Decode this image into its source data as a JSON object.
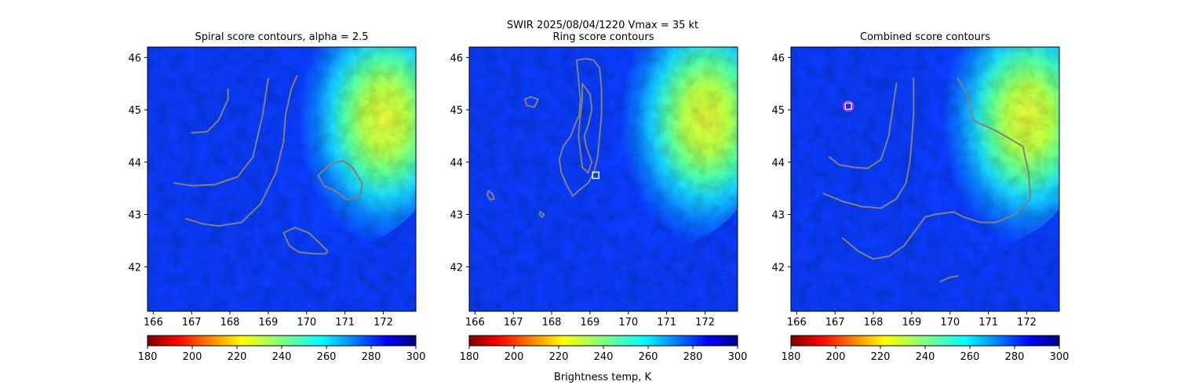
{
  "figure": {
    "suptitle_line1": "SWIR  2025/08/04/1220    Vmax = 35 kt",
    "colorbar_label": "Brightness temp, K"
  },
  "style": {
    "contour_color": "#808080",
    "marker_color": "#ffffff",
    "circle_marker_color": "#ff1aff"
  },
  "chart_data": [
    {
      "type": "heatmap",
      "title": "Spiral score contours, alpha =  2.5",
      "xlim": [
        165.85,
        172.85
      ],
      "ylim": [
        41.15,
        46.2
      ],
      "xticks": [
        "166",
        "167",
        "168",
        "169",
        "170",
        "171",
        "172"
      ],
      "yticks": [
        "42",
        "43",
        "44",
        "45",
        "46"
      ],
      "colormap": "jet_r",
      "colorbar": {
        "min": 180,
        "max": 300,
        "ticks": [
          "180",
          "200",
          "220",
          "240",
          "260",
          "280",
          "300"
        ]
      },
      "contours": [
        [
          [
            167.0,
            44.56
          ],
          [
            167.4,
            44.58
          ],
          [
            167.7,
            44.8
          ],
          [
            167.95,
            45.2
          ],
          [
            167.95,
            45.4
          ]
        ],
        [
          [
            166.55,
            43.6
          ],
          [
            167.0,
            43.55
          ],
          [
            167.6,
            43.57
          ],
          [
            168.2,
            43.72
          ],
          [
            168.6,
            44.1
          ],
          [
            168.85,
            44.9
          ],
          [
            169.0,
            45.6
          ]
        ],
        [
          [
            166.85,
            42.92
          ],
          [
            167.3,
            42.82
          ],
          [
            167.7,
            42.78
          ],
          [
            168.3,
            42.85
          ],
          [
            168.8,
            43.2
          ],
          [
            169.2,
            43.8
          ],
          [
            169.4,
            44.4
          ],
          [
            169.45,
            44.9
          ],
          [
            169.6,
            45.4
          ],
          [
            169.75,
            45.65
          ]
        ],
        [
          [
            170.3,
            43.75
          ],
          [
            170.6,
            43.95
          ],
          [
            170.95,
            44.03
          ],
          [
            171.2,
            43.9
          ],
          [
            171.45,
            43.6
          ],
          [
            171.4,
            43.35
          ],
          [
            171.05,
            43.28
          ],
          [
            170.75,
            43.45
          ],
          [
            170.45,
            43.55
          ],
          [
            170.3,
            43.75
          ]
        ],
        [
          [
            169.4,
            42.65
          ],
          [
            169.7,
            42.75
          ],
          [
            170.05,
            42.65
          ],
          [
            170.3,
            42.48
          ],
          [
            170.55,
            42.3
          ],
          [
            170.5,
            42.25
          ],
          [
            170.2,
            42.25
          ],
          [
            169.8,
            42.28
          ],
          [
            169.55,
            42.4
          ],
          [
            169.4,
            42.65
          ]
        ]
      ],
      "markers": []
    },
    {
      "type": "heatmap",
      "title": "Ring score contours",
      "xlim": [
        165.85,
        172.85
      ],
      "ylim": [
        41.15,
        46.2
      ],
      "xticks": [
        "166",
        "167",
        "168",
        "169",
        "170",
        "171",
        "172"
      ],
      "yticks": [
        "42",
        "43",
        "44",
        "45",
        "46"
      ],
      "colormap": "jet_r",
      "colorbar": {
        "min": 180,
        "max": 300,
        "ticks": [
          "180",
          "200",
          "220",
          "240",
          "260",
          "280",
          "300"
        ]
      },
      "contours": [
        [
          [
            168.65,
            45.95
          ],
          [
            168.7,
            45.6
          ],
          [
            168.75,
            45.2
          ],
          [
            168.72,
            44.9
          ],
          [
            168.6,
            44.7
          ],
          [
            168.5,
            44.5
          ],
          [
            168.3,
            44.3
          ],
          [
            168.2,
            44.05
          ],
          [
            168.25,
            43.8
          ],
          [
            168.4,
            43.55
          ],
          [
            168.55,
            43.35
          ],
          [
            168.7,
            43.45
          ],
          [
            168.95,
            43.6
          ],
          [
            169.1,
            43.8
          ],
          [
            169.2,
            44.1
          ],
          [
            169.25,
            44.5
          ],
          [
            169.3,
            44.9
          ],
          [
            169.3,
            45.4
          ],
          [
            169.25,
            45.8
          ],
          [
            169.1,
            45.95
          ],
          [
            168.9,
            45.98
          ],
          [
            168.65,
            45.95
          ]
        ],
        [
          [
            168.8,
            45.5
          ],
          [
            169.0,
            45.3
          ],
          [
            169.05,
            45.0
          ],
          [
            168.95,
            44.7
          ],
          [
            168.85,
            44.5
          ],
          [
            168.9,
            44.3
          ],
          [
            169.05,
            44.0
          ],
          [
            168.95,
            43.8
          ],
          [
            168.8,
            43.9
          ],
          [
            168.75,
            44.2
          ],
          [
            168.7,
            44.5
          ],
          [
            168.75,
            44.9
          ],
          [
            168.8,
            45.2
          ],
          [
            168.8,
            45.5
          ]
        ],
        [
          [
            167.3,
            45.2
          ],
          [
            167.45,
            45.25
          ],
          [
            167.65,
            45.2
          ],
          [
            167.55,
            45.05
          ],
          [
            167.35,
            45.08
          ],
          [
            167.3,
            45.2
          ]
        ],
        [
          [
            166.35,
            43.45
          ],
          [
            166.45,
            43.4
          ],
          [
            166.5,
            43.3
          ],
          [
            166.4,
            43.28
          ],
          [
            166.32,
            43.38
          ],
          [
            166.35,
            43.45
          ]
        ],
        [
          [
            167.7,
            43.05
          ],
          [
            167.8,
            43.0
          ],
          [
            167.75,
            42.95
          ],
          [
            167.68,
            43.0
          ],
          [
            167.7,
            43.05
          ]
        ]
      ],
      "markers": [
        {
          "shape": "square",
          "x": 169.15,
          "y": 43.75
        }
      ]
    },
    {
      "type": "heatmap",
      "title": "Combined score contours",
      "xlim": [
        165.85,
        172.85
      ],
      "ylim": [
        41.15,
        46.2
      ],
      "xticks": [
        "166",
        "167",
        "168",
        "169",
        "170",
        "171",
        "172"
      ],
      "yticks": [
        "42",
        "43",
        "44",
        "45",
        "46"
      ],
      "colormap": "jet_r",
      "colorbar": {
        "min": 180,
        "max": 300,
        "ticks": [
          "180",
          "200",
          "220",
          "240",
          "260",
          "280",
          "300"
        ]
      },
      "contours": [
        [
          [
            166.85,
            44.1
          ],
          [
            167.1,
            43.95
          ],
          [
            167.5,
            43.9
          ],
          [
            167.85,
            43.88
          ],
          [
            168.2,
            44.05
          ],
          [
            168.4,
            44.5
          ],
          [
            168.5,
            45.0
          ],
          [
            168.6,
            45.5
          ]
        ],
        [
          [
            166.7,
            43.4
          ],
          [
            167.2,
            43.25
          ],
          [
            167.7,
            43.15
          ],
          [
            168.2,
            43.12
          ],
          [
            168.6,
            43.3
          ],
          [
            168.85,
            43.6
          ],
          [
            168.95,
            44.0
          ],
          [
            169.0,
            44.4
          ],
          [
            169.05,
            44.9
          ],
          [
            169.05,
            45.6
          ]
        ],
        [
          [
            167.2,
            42.55
          ],
          [
            167.6,
            42.3
          ],
          [
            168.0,
            42.15
          ],
          [
            168.4,
            42.2
          ],
          [
            168.8,
            42.4
          ],
          [
            169.1,
            42.7
          ],
          [
            169.35,
            42.95
          ],
          [
            169.6,
            43.0
          ],
          [
            170.1,
            43.05
          ],
          [
            170.35,
            42.95
          ],
          [
            170.8,
            42.85
          ],
          [
            171.2,
            42.85
          ],
          [
            171.7,
            43.0
          ],
          [
            172.1,
            43.3
          ],
          [
            172.05,
            43.8
          ],
          [
            171.9,
            44.3
          ],
          [
            171.2,
            44.6
          ],
          [
            170.6,
            44.8
          ],
          [
            170.45,
            45.3
          ],
          [
            170.2,
            45.6
          ]
        ],
        [
          [
            169.75,
            41.72
          ],
          [
            170.0,
            41.8
          ],
          [
            170.2,
            41.82
          ]
        ]
      ],
      "markers": [
        {
          "shape": "square",
          "x": 167.35,
          "y": 45.07
        },
        {
          "shape": "circle",
          "x": 167.35,
          "y": 45.07
        }
      ]
    }
  ]
}
